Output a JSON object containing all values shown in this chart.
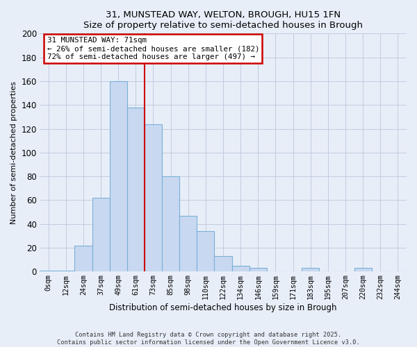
{
  "title": "31, MUNSTEAD WAY, WELTON, BROUGH, HU15 1FN",
  "subtitle": "Size of property relative to semi-detached houses in Brough",
  "xlabel": "Distribution of semi-detached houses by size in Brough",
  "ylabel": "Number of semi-detached properties",
  "bar_labels": [
    "0sqm",
    "12sqm",
    "24sqm",
    "37sqm",
    "49sqm",
    "61sqm",
    "73sqm",
    "85sqm",
    "98sqm",
    "110sqm",
    "122sqm",
    "134sqm",
    "146sqm",
    "159sqm",
    "171sqm",
    "183sqm",
    "195sqm",
    "207sqm",
    "220sqm",
    "232sqm",
    "244sqm"
  ],
  "bar_values": [
    1,
    1,
    22,
    62,
    160,
    138,
    124,
    80,
    47,
    34,
    13,
    5,
    3,
    0,
    0,
    3,
    0,
    0,
    3,
    0,
    0
  ],
  "bar_color": "#c8d8f0",
  "bar_edge_color": "#7ab0d8",
  "vline_x": 6,
  "vline_color": "#cc0000",
  "annotation_title": "31 MUNSTEAD WAY: 71sqm",
  "annotation_line1": "← 26% of semi-detached houses are smaller (182)",
  "annotation_line2": "72% of semi-detached houses are larger (497) →",
  "annotation_box_color": "white",
  "annotation_box_edge": "#cc0000",
  "ylim": [
    0,
    200
  ],
  "yticks": [
    0,
    20,
    40,
    60,
    80,
    100,
    120,
    140,
    160,
    180,
    200
  ],
  "footnote1": "Contains HM Land Registry data © Crown copyright and database right 2025.",
  "footnote2": "Contains public sector information licensed under the Open Government Licence v3.0.",
  "bg_color": "#e8eef8",
  "plot_bg_color": "#e8eef8",
  "grid_color": "#c0cce0"
}
